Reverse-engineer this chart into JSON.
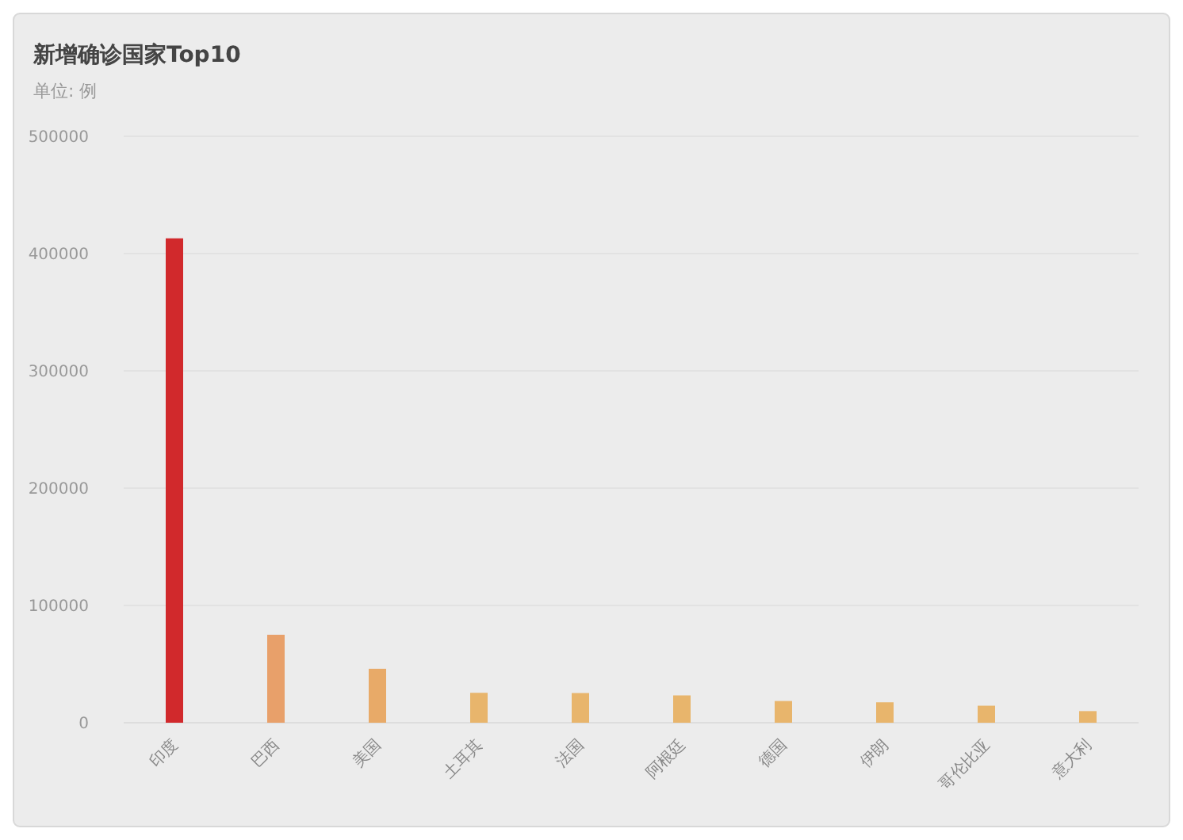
{
  "chart_data": {
    "type": "bar",
    "title": "新增确诊国家Top10",
    "subtitle": "单位: 例",
    "categories": [
      "印度",
      "巴西",
      "美国",
      "土耳其",
      "法国",
      "阿根廷",
      "德国",
      "伊朗",
      "哥伦比亚",
      "意大利"
    ],
    "values": [
      413000,
      75000,
      46000,
      25500,
      25300,
      23300,
      18500,
      17400,
      14500,
      9900
    ],
    "colors": [
      "#d1292c",
      "#e8a06a",
      "#e8aa68",
      "#e8b56c",
      "#e8b56c",
      "#e8b56c",
      "#e8b56c",
      "#e8b56c",
      "#e8b56c",
      "#e8b56c"
    ],
    "ylim": [
      0,
      500000
    ],
    "yticks": [
      0,
      100000,
      200000,
      300000,
      400000,
      500000
    ],
    "grid": "y"
  }
}
